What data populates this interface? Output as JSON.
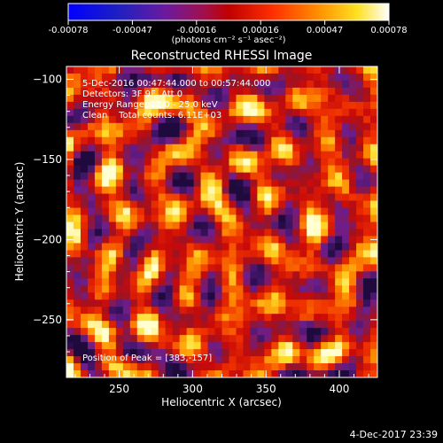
{
  "chart_data": {
    "type": "heatmap",
    "title": "Reconstructed RHESSI Image",
    "xlabel": "Heliocentric X (arcsec)",
    "ylabel": "Heliocentric Y (arcsec)",
    "xlim": [
      214,
      426
    ],
    "ylim": [
      -286,
      -92
    ],
    "x_ticks": [
      250,
      300,
      350,
      400
    ],
    "y_ticks": [
      -100,
      -150,
      -200,
      -250
    ],
    "colorbar": {
      "tick_labels": [
        "-0.00078",
        "-0.00047",
        "-0.00016",
        "0.00016",
        "0.00047",
        "0.00078"
      ],
      "unit_label": "(photons cm⁻² s⁻¹ asec⁻²)",
      "range": [
        -0.00078,
        0.00078
      ]
    },
    "annotations": [
      "5-Dec-2016 00:47:44.000 to 00:57:44.000",
      "Detectors: 3F 9F, Att 0",
      "Energy Range: 12.0 - 25.0 keV",
      "Clean    Total counts: 6.11E+03"
    ],
    "peak_label": "Position of Peak = [383,-157]",
    "peak_position": [
      383,
      -157
    ]
  },
  "footer_timestamp": "4-Dec-2017 23:39"
}
